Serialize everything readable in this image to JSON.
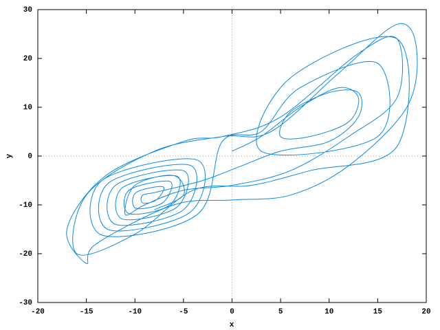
{
  "chart_data": {
    "type": "line",
    "xlabel": "x",
    "ylabel": "y",
    "xlim": [
      -20,
      20
    ],
    "ylim": [
      -30,
      30
    ],
    "xticks": [
      -20,
      -15,
      -10,
      -5,
      0,
      5,
      10,
      15,
      20
    ],
    "yticks": [
      -30,
      -20,
      -10,
      0,
      10,
      20,
      30
    ],
    "zeroaxis": true,
    "x": [
      0,
      3,
      7,
      11,
      13,
      12,
      8,
      5,
      6,
      10,
      13,
      13,
      10,
      5,
      1,
      -3,
      -7.8,
      -9.2,
      -9.2,
      -7.8,
      -7.1,
      -9.9,
      -9.9,
      -7.1,
      -6.4,
      -10.6,
      -10.6,
      -6.4,
      -5.7,
      -11.3,
      -11.3,
      -5.7,
      -5,
      -12,
      -12,
      -5,
      -4.3,
      -12.7,
      -12.7,
      -4.3,
      -3.6,
      -13.4,
      -13.4,
      -3.6,
      -1,
      3,
      7,
      15,
      15,
      3,
      6,
      17,
      17,
      8,
      2,
      -4,
      -10,
      -16,
      -15,
      -8,
      -1,
      4,
      11,
      17,
      19,
      18,
      12,
      6,
      0,
      -6,
      -14,
      -15,
      -17,
      -13,
      -5,
      -1,
      5,
      13,
      17,
      17,
      12,
      6,
      0,
      -5,
      -9,
      -11,
      -10,
      -6,
      -5,
      -8
    ],
    "series": [
      {
        "color": "#0a8ae6",
        "values": [
          1,
          4,
          10,
          14,
          12,
          7,
          4,
          4,
          9,
          13,
          13,
          8,
          3,
          1,
          -2,
          -5,
          -7.4,
          -8,
          -9.6,
          -9,
          -6.3,
          -7.5,
          -10.7,
          -9.5,
          -5.2,
          -7,
          -11.8,
          -10,
          -4.1,
          -6.5,
          -12.9,
          -10.5,
          -3,
          -6,
          -14,
          -11,
          -1.9,
          -5.5,
          -15.1,
          -11.5,
          -0.8,
          -5,
          -16.2,
          -12,
          3,
          5,
          14,
          19,
          4,
          1,
          16,
          24,
          2,
          -3,
          -6,
          -7,
          -16,
          -20,
          -8,
          1,
          4,
          5,
          17,
          27,
          22,
          10,
          -2,
          -8,
          -9,
          -10,
          -18,
          -22,
          -15,
          -4,
          3,
          4,
          8,
          21,
          24,
          12,
          4,
          -3,
          -6,
          -7,
          -10,
          -12,
          -6,
          -4,
          -8,
          -11
        ]
      }
    ]
  }
}
